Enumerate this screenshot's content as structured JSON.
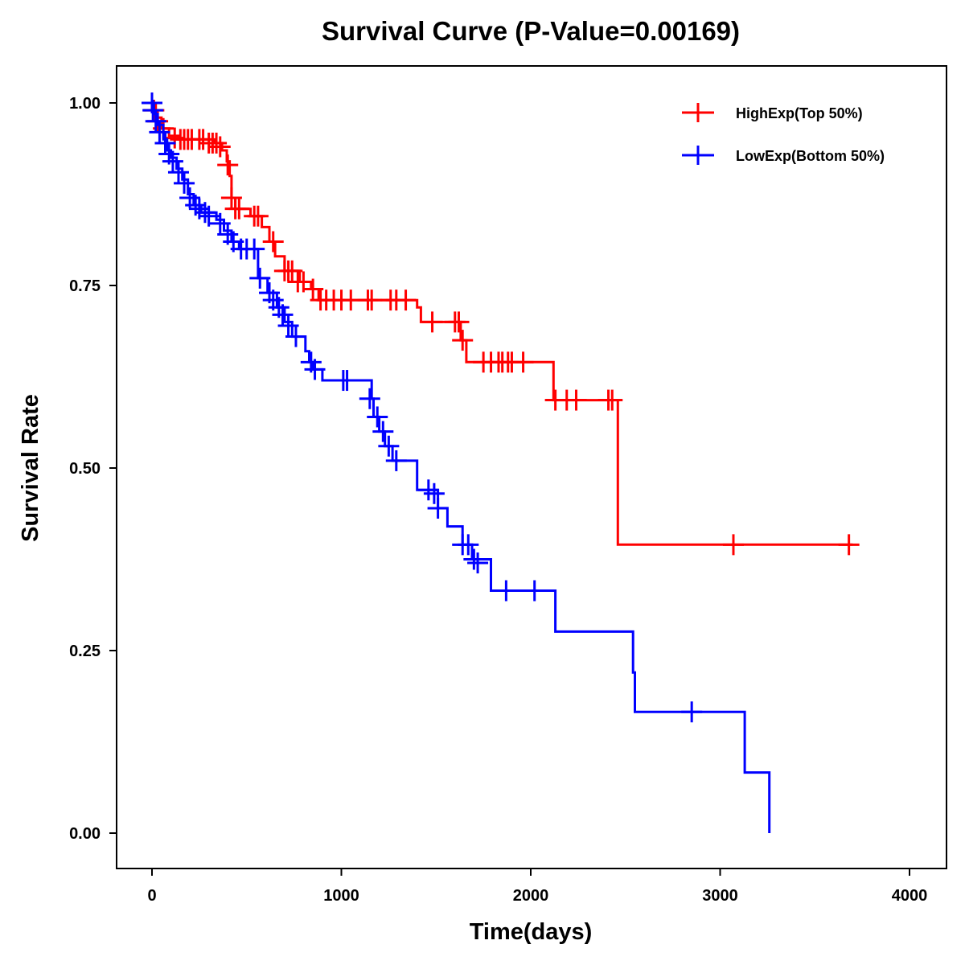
{
  "chart_data": {
    "type": "line",
    "subtype": "kaplan-meier-step",
    "title": "Survival Curve (P-Value=0.00169)",
    "xlabel": "Time(days)",
    "ylabel": "Survival Rate",
    "xlim": [
      -200,
      4200
    ],
    "ylim": [
      -0.045,
      1.05
    ],
    "x_ticks": [
      0,
      1000,
      2000,
      3000,
      4000
    ],
    "x_tick_labels": [
      "0",
      "1000",
      "2000",
      "3000",
      "4000"
    ],
    "y_ticks": [
      0,
      0.25,
      0.5,
      0.75,
      1.0
    ],
    "y_tick_labels": [
      "0.00",
      "0.25",
      "0.50",
      "0.75",
      "1.00"
    ],
    "grid": false,
    "legend_position": "top-right",
    "series": [
      {
        "name": "HighExp(Top 50%)",
        "color": "#FF0000",
        "steps": [
          [
            0,
            1.0
          ],
          [
            20,
            0.98
          ],
          [
            50,
            0.965
          ],
          [
            90,
            0.955
          ],
          [
            140,
            0.95
          ],
          [
            330,
            0.945
          ],
          [
            370,
            0.935
          ],
          [
            395,
            0.92
          ],
          [
            410,
            0.9
          ],
          [
            420,
            0.87
          ],
          [
            440,
            0.855
          ],
          [
            520,
            0.845
          ],
          [
            580,
            0.83
          ],
          [
            620,
            0.81
          ],
          [
            650,
            0.79
          ],
          [
            700,
            0.77
          ],
          [
            780,
            0.755
          ],
          [
            840,
            0.745
          ],
          [
            880,
            0.73
          ],
          [
            1400,
            0.72
          ],
          [
            1420,
            0.7
          ],
          [
            1630,
            0.675
          ],
          [
            1660,
            0.645
          ],
          [
            2120,
            0.593
          ],
          [
            2460,
            0.395
          ],
          [
            3700,
            0.395
          ]
        ],
        "censor_points": [
          [
            0,
            1.0
          ],
          [
            10,
            0.99
          ],
          [
            30,
            0.975
          ],
          [
            60,
            0.965
          ],
          [
            120,
            0.952
          ],
          [
            150,
            0.95
          ],
          [
            170,
            0.95
          ],
          [
            190,
            0.95
          ],
          [
            210,
            0.95
          ],
          [
            250,
            0.95
          ],
          [
            270,
            0.95
          ],
          [
            300,
            0.945
          ],
          [
            320,
            0.945
          ],
          [
            340,
            0.945
          ],
          [
            360,
            0.94
          ],
          [
            400,
            0.915
          ],
          [
            420,
            0.87
          ],
          [
            440,
            0.855
          ],
          [
            460,
            0.855
          ],
          [
            540,
            0.845
          ],
          [
            560,
            0.845
          ],
          [
            640,
            0.81
          ],
          [
            700,
            0.77
          ],
          [
            720,
            0.77
          ],
          [
            740,
            0.77
          ],
          [
            770,
            0.755
          ],
          [
            800,
            0.755
          ],
          [
            850,
            0.745
          ],
          [
            890,
            0.73
          ],
          [
            920,
            0.73
          ],
          [
            960,
            0.73
          ],
          [
            1000,
            0.73
          ],
          [
            1050,
            0.73
          ],
          [
            1140,
            0.73
          ],
          [
            1160,
            0.73
          ],
          [
            1260,
            0.73
          ],
          [
            1290,
            0.73
          ],
          [
            1340,
            0.73
          ],
          [
            1480,
            0.7
          ],
          [
            1600,
            0.7
          ],
          [
            1620,
            0.7
          ],
          [
            1640,
            0.675
          ],
          [
            1750,
            0.645
          ],
          [
            1790,
            0.645
          ],
          [
            1830,
            0.645
          ],
          [
            1850,
            0.645
          ],
          [
            1880,
            0.645
          ],
          [
            1900,
            0.645
          ],
          [
            1960,
            0.645
          ],
          [
            2130,
            0.593
          ],
          [
            2190,
            0.593
          ],
          [
            2240,
            0.593
          ],
          [
            2410,
            0.593
          ],
          [
            2430,
            0.593
          ],
          [
            3070,
            0.395
          ],
          [
            3680,
            0.395
          ]
        ]
      },
      {
        "name": "LowExp(Bottom 50%)",
        "color": "#0000FF",
        "steps": [
          [
            0,
            1.0
          ],
          [
            10,
            0.985
          ],
          [
            30,
            0.97
          ],
          [
            60,
            0.95
          ],
          [
            80,
            0.935
          ],
          [
            100,
            0.925
          ],
          [
            130,
            0.91
          ],
          [
            160,
            0.895
          ],
          [
            190,
            0.875
          ],
          [
            220,
            0.86
          ],
          [
            260,
            0.85
          ],
          [
            340,
            0.84
          ],
          [
            380,
            0.825
          ],
          [
            420,
            0.81
          ],
          [
            460,
            0.8
          ],
          [
            560,
            0.76
          ],
          [
            610,
            0.74
          ],
          [
            660,
            0.72
          ],
          [
            700,
            0.7
          ],
          [
            740,
            0.68
          ],
          [
            810,
            0.66
          ],
          [
            830,
            0.645
          ],
          [
            850,
            0.635
          ],
          [
            900,
            0.62
          ],
          [
            1160,
            0.595
          ],
          [
            1170,
            0.57
          ],
          [
            1200,
            0.55
          ],
          [
            1230,
            0.53
          ],
          [
            1270,
            0.51
          ],
          [
            1400,
            0.47
          ],
          [
            1510,
            0.445
          ],
          [
            1560,
            0.42
          ],
          [
            1640,
            0.395
          ],
          [
            1690,
            0.375
          ],
          [
            1790,
            0.332
          ],
          [
            2130,
            0.276
          ],
          [
            2540,
            0.22
          ],
          [
            2550,
            0.166
          ],
          [
            3130,
            0.083
          ],
          [
            3260,
            0.0
          ]
        ],
        "censor_points": [
          [
            0,
            1.0
          ],
          [
            5,
            0.99
          ],
          [
            20,
            0.975
          ],
          [
            40,
            0.96
          ],
          [
            70,
            0.945
          ],
          [
            90,
            0.93
          ],
          [
            110,
            0.92
          ],
          [
            140,
            0.905
          ],
          [
            170,
            0.89
          ],
          [
            200,
            0.87
          ],
          [
            230,
            0.86
          ],
          [
            250,
            0.855
          ],
          [
            280,
            0.85
          ],
          [
            300,
            0.845
          ],
          [
            360,
            0.835
          ],
          [
            400,
            0.82
          ],
          [
            430,
            0.81
          ],
          [
            470,
            0.8
          ],
          [
            500,
            0.8
          ],
          [
            540,
            0.8
          ],
          [
            570,
            0.76
          ],
          [
            620,
            0.74
          ],
          [
            640,
            0.73
          ],
          [
            670,
            0.72
          ],
          [
            690,
            0.71
          ],
          [
            720,
            0.695
          ],
          [
            760,
            0.68
          ],
          [
            840,
            0.645
          ],
          [
            860,
            0.635
          ],
          [
            1010,
            0.62
          ],
          [
            1030,
            0.62
          ],
          [
            1150,
            0.595
          ],
          [
            1190,
            0.57
          ],
          [
            1220,
            0.55
          ],
          [
            1250,
            0.53
          ],
          [
            1290,
            0.51
          ],
          [
            1460,
            0.47
          ],
          [
            1490,
            0.465
          ],
          [
            1510,
            0.445
          ],
          [
            1640,
            0.395
          ],
          [
            1670,
            0.395
          ],
          [
            1700,
            0.375
          ],
          [
            1720,
            0.37
          ],
          [
            1870,
            0.332
          ],
          [
            2020,
            0.332
          ],
          [
            2850,
            0.166
          ]
        ]
      }
    ]
  }
}
